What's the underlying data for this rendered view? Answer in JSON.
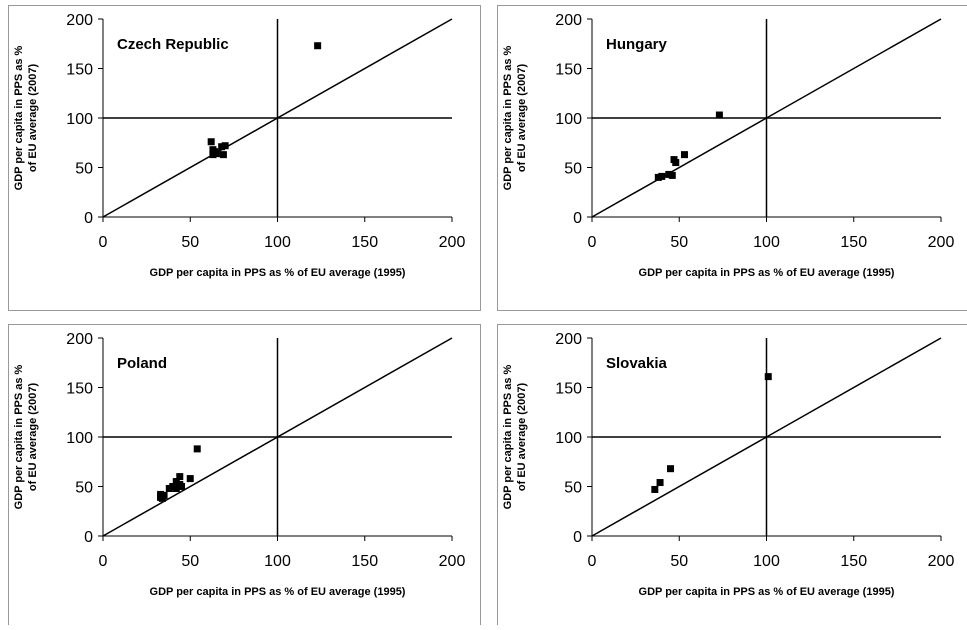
{
  "chart_data": [
    {
      "type": "scatter",
      "title": "Czech Republic",
      "x_label": "GDP per capita in PPS as % of EU average (1995)",
      "y_label": [
        "GDP per capita in PPS as %",
        "of EU average (2007)"
      ],
      "xlim": [
        0,
        200
      ],
      "ylim": [
        0,
        200
      ],
      "xticks": [
        0,
        50,
        100,
        150,
        200
      ],
      "yticks": [
        0,
        50,
        100,
        150,
        200
      ],
      "color": "#000000",
      "reference_lines": {
        "x": 100,
        "y": 100,
        "diagonal": true
      },
      "x": [
        123,
        62,
        63,
        64,
        65,
        68,
        70,
        69,
        63
      ],
      "y": [
        173,
        76,
        68,
        66,
        64,
        71,
        72,
        63,
        63
      ]
    },
    {
      "type": "scatter",
      "title": "Hungary",
      "x_label": "GDP per capita in PPS as % of EU average (1995)",
      "y_label": [
        "GDP per capita in PPS as %",
        "of EU average (2007)"
      ],
      "xlim": [
        0,
        200
      ],
      "ylim": [
        0,
        200
      ],
      "xticks": [
        0,
        50,
        100,
        150,
        200
      ],
      "yticks": [
        0,
        50,
        100,
        150,
        200
      ],
      "color": "#000000",
      "reference_lines": {
        "x": 100,
        "y": 100,
        "diagonal": true
      },
      "x": [
        73,
        38,
        40,
        44,
        46,
        47,
        48,
        53
      ],
      "y": [
        103,
        40,
        41,
        43,
        42,
        58,
        55,
        63
      ]
    },
    {
      "type": "scatter",
      "title": "Poland",
      "x_label": "GDP per capita in PPS as % of EU average (1995)",
      "y_label": [
        "GDP per capita in PPS as %",
        "of EU average (2007)"
      ],
      "xlim": [
        0,
        200
      ],
      "ylim": [
        0,
        200
      ],
      "xticks": [
        0,
        50,
        100,
        150,
        200
      ],
      "yticks": [
        0,
        50,
        100,
        150,
        200
      ],
      "color": "#000000",
      "reference_lines": {
        "x": 100,
        "y": 100,
        "diagonal": true
      },
      "x": [
        54,
        50,
        44,
        42,
        44,
        42,
        45,
        38,
        40,
        33,
        33,
        34,
        33,
        35
      ],
      "y": [
        88,
        58,
        60,
        55,
        52,
        48,
        50,
        48,
        50,
        42,
        40,
        38,
        39,
        41
      ]
    },
    {
      "type": "scatter",
      "title": "Slovakia",
      "x_label": "GDP per capita in PPS as % of EU average (1995)",
      "y_label": [
        "GDP per capita in PPS as %",
        "of EU average (2007)"
      ],
      "xlim": [
        0,
        200
      ],
      "ylim": [
        0,
        200
      ],
      "xticks": [
        0,
        50,
        100,
        150,
        200
      ],
      "yticks": [
        0,
        50,
        100,
        150,
        200
      ],
      "color": "#000000",
      "reference_lines": {
        "x": 100,
        "y": 100,
        "diagonal": true
      },
      "x": [
        101,
        45,
        39,
        36
      ],
      "y": [
        161,
        68,
        54,
        47
      ]
    }
  ]
}
